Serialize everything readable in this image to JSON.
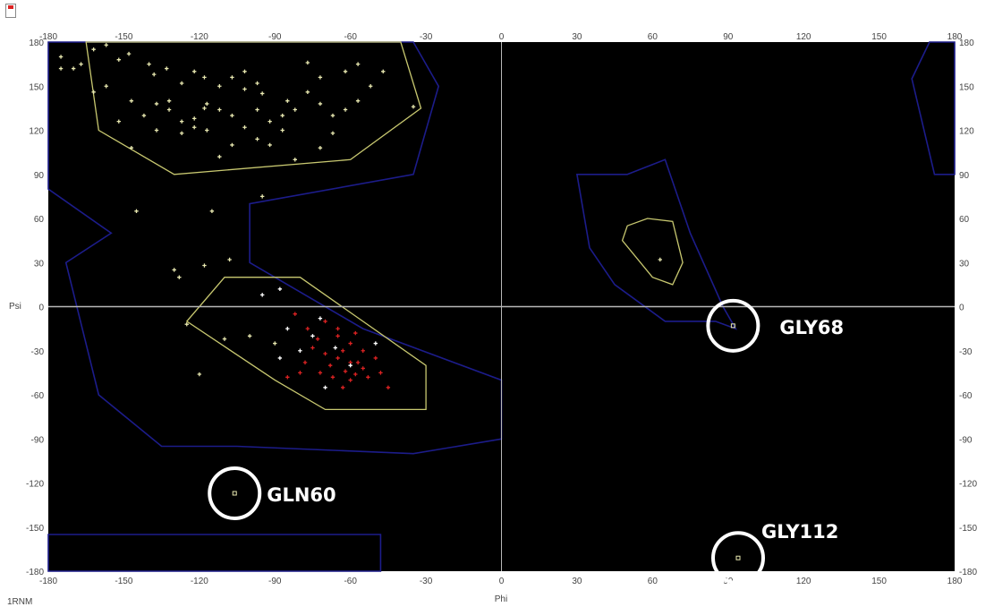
{
  "chart_data": {
    "type": "scatter",
    "title": "",
    "xlabel": "Phi",
    "ylabel": "Psi",
    "structure_id": "1RNM",
    "xlim": [
      -180,
      180
    ],
    "ylim": [
      -180,
      180
    ],
    "x_ticks": [
      "-180",
      "-150",
      "-120",
      "-90",
      "-60",
      "-30",
      "0",
      "30",
      "60",
      "90",
      "120",
      "150",
      "180"
    ],
    "y_ticks": [
      "180",
      "150",
      "120",
      "90",
      "60",
      "30",
      "0",
      "-30",
      "-60",
      "-90",
      "-120",
      "-150",
      "-180"
    ],
    "grid": false,
    "zero_lines": true,
    "colors": {
      "background": "#000000",
      "allowed_region": "#1c1c8a",
      "core_region": "#c8c870",
      "residue": "#e8e8b0",
      "helix_residue": "#dd2222",
      "zero_line": "#b8b8b8",
      "callout_circle": "#ffffff"
    },
    "allowed_regions": [
      [
        [
          -180,
          180
        ],
        [
          -35,
          180
        ],
        [
          -25,
          150
        ],
        [
          -35,
          90
        ],
        [
          -100,
          70
        ],
        [
          -100,
          30
        ],
        [
          -55,
          -15
        ],
        [
          0,
          -50
        ],
        [
          0,
          -90
        ],
        [
          -35,
          -100
        ],
        [
          -105,
          -95
        ],
        [
          -135,
          -95
        ],
        [
          -160,
          -60
        ],
        [
          -173,
          30
        ],
        [
          -155,
          50
        ],
        [
          -180,
          80
        ]
      ],
      [
        [
          50,
          90
        ],
        [
          65,
          100
        ],
        [
          75,
          50
        ],
        [
          88,
          0
        ],
        [
          93,
          -15
        ],
        [
          85,
          -10
        ],
        [
          65,
          -10
        ],
        [
          45,
          15
        ],
        [
          35,
          40
        ],
        [
          30,
          90
        ]
      ],
      [
        [
          -180,
          -155
        ],
        [
          -48,
          -155
        ],
        [
          -48,
          -180
        ],
        [
          -180,
          -180
        ]
      ],
      [
        [
          170,
          180
        ],
        [
          163,
          155
        ],
        [
          172,
          90
        ],
        [
          180,
          90
        ],
        [
          180,
          180
        ]
      ]
    ],
    "core_regions": [
      [
        [
          -165,
          180
        ],
        [
          -40,
          180
        ],
        [
          -32,
          135
        ],
        [
          -60,
          100
        ],
        [
          -130,
          90
        ],
        [
          -160,
          120
        ]
      ],
      [
        [
          -110,
          20
        ],
        [
          -80,
          20
        ],
        [
          -30,
          -40
        ],
        [
          -30,
          -70
        ],
        [
          -70,
          -70
        ],
        [
          -90,
          -50
        ],
        [
          -125,
          -10
        ]
      ],
      [
        [
          50,
          55
        ],
        [
          58,
          60
        ],
        [
          68,
          58
        ],
        [
          72,
          30
        ],
        [
          68,
          15
        ],
        [
          60,
          20
        ],
        [
          48,
          45
        ]
      ]
    ],
    "residues_core": [
      [
        -175,
        170
      ],
      [
        -175,
        162
      ],
      [
        -167,
        165
      ],
      [
        -162,
        175
      ],
      [
        -157,
        178
      ],
      [
        -152,
        168
      ],
      [
        -148,
        172
      ],
      [
        -140,
        165
      ],
      [
        -138,
        158
      ],
      [
        -133,
        162
      ],
      [
        -127,
        152
      ],
      [
        -122,
        160
      ],
      [
        -118,
        156
      ],
      [
        -112,
        150
      ],
      [
        -107,
        156
      ],
      [
        -102,
        148
      ],
      [
        -97,
        152
      ],
      [
        -157,
        150
      ],
      [
        -147,
        140
      ],
      [
        -142,
        130
      ],
      [
        -137,
        138
      ],
      [
        -132,
        134
      ],
      [
        -127,
        126
      ],
      [
        -122,
        128
      ],
      [
        -117,
        138
      ],
      [
        -112,
        134
      ],
      [
        -107,
        130
      ],
      [
        -102,
        122
      ],
      [
        -97,
        134
      ],
      [
        -92,
        126
      ],
      [
        -87,
        130
      ],
      [
        -85,
        140
      ],
      [
        -82,
        134
      ],
      [
        -77,
        146
      ],
      [
        -72,
        138
      ],
      [
        -67,
        130
      ],
      [
        -62,
        134
      ],
      [
        -57,
        140
      ],
      [
        -52,
        150
      ],
      [
        -47,
        160
      ],
      [
        -57,
        165
      ],
      [
        -62,
        160
      ],
      [
        -72,
        156
      ],
      [
        -77,
        166
      ],
      [
        -87,
        120
      ],
      [
        -97,
        114
      ],
      [
        -107,
        110
      ],
      [
        -117,
        120
      ],
      [
        -127,
        118
      ],
      [
        -137,
        120
      ],
      [
        -147,
        108
      ],
      [
        -152,
        126
      ],
      [
        -162,
        146
      ],
      [
        -170,
        162
      ],
      [
        -82,
        100
      ],
      [
        -72,
        108
      ],
      [
        -67,
        118
      ],
      [
        -92,
        110
      ],
      [
        -112,
        102
      ],
      [
        -122,
        122
      ],
      [
        -132,
        140
      ],
      [
        -102,
        160
      ],
      [
        -118,
        135
      ],
      [
        -95,
        145
      ]
    ],
    "residues_outside": [
      [
        -145,
        65
      ],
      [
        -115,
        65
      ],
      [
        -95,
        75
      ],
      [
        -130,
        25
      ],
      [
        -128,
        20
      ],
      [
        -118,
        28
      ],
      [
        -108,
        32
      ],
      [
        -35,
        136
      ],
      [
        -125,
        -12
      ],
      [
        -120,
        -46
      ],
      [
        -110,
        -22
      ],
      [
        -100,
        -20
      ],
      [
        -90,
        -25
      ],
      [
        63,
        32
      ]
    ],
    "residues_helix": [
      [
        -82,
        -5
      ],
      [
        -70,
        -10
      ],
      [
        -65,
        -15
      ],
      [
        -60,
        -25
      ],
      [
        -75,
        -28
      ],
      [
        -70,
        -32
      ],
      [
        -65,
        -35
      ],
      [
        -60,
        -38
      ],
      [
        -55,
        -42
      ],
      [
        -68,
        -40
      ],
      [
        -62,
        -44
      ],
      [
        -58,
        -46
      ],
      [
        -72,
        -45
      ],
      [
        -78,
        -38
      ],
      [
        -55,
        -30
      ],
      [
        -50,
        -35
      ],
      [
        -60,
        -50
      ],
      [
        -48,
        -45
      ],
      [
        -65,
        -20
      ],
      [
        -45,
        -55
      ],
      [
        -80,
        -45
      ],
      [
        -57,
        -38
      ],
      [
        -63,
        -30
      ],
      [
        -53,
        -48
      ],
      [
        -67,
        -48
      ],
      [
        -73,
        -22
      ],
      [
        -77,
        -15
      ],
      [
        -58,
        -18
      ],
      [
        -85,
        -48
      ],
      [
        -63,
        -55
      ]
    ],
    "residues_helix_white": [
      [
        -95,
        8
      ],
      [
        -88,
        12
      ],
      [
        -85,
        -15
      ],
      [
        -75,
        -20
      ],
      [
        -70,
        -55
      ],
      [
        -80,
        -30
      ],
      [
        -60,
        -40
      ],
      [
        -72,
        -8
      ],
      [
        -50,
        -25
      ],
      [
        -88,
        -35
      ],
      [
        -66,
        -28
      ]
    ],
    "labeled_residues": [
      {
        "label": "GLN60",
        "phi": -106,
        "psi": -127
      },
      {
        "label": "GLY68",
        "phi": 92,
        "psi": -13
      },
      {
        "label": "GLY112",
        "phi": 94,
        "psi": -171
      }
    ]
  }
}
